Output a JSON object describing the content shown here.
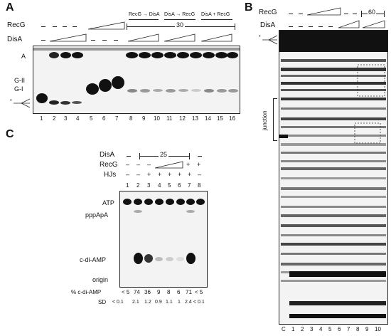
{
  "panelA": {
    "label": "A",
    "recg_label": "RecG",
    "disa_label": "DisA",
    "order_labels": [
      "RecG → DisA",
      "DisA → RecG",
      "DisA + RecG"
    ],
    "conc": "30",
    "band_labels": {
      "a": "A",
      "g2": "G-II",
      "g1": "G-I"
    },
    "lanes": [
      "1",
      "2",
      "3",
      "4",
      "5",
      "6",
      "7",
      "8",
      "9",
      "10",
      "11",
      "12",
      "13",
      "14",
      "15",
      "16"
    ]
  },
  "panelB": {
    "label": "B",
    "recg_label": "RecG",
    "disa_label": "DisA",
    "conc": "60",
    "junction_label": "junction",
    "lanes": [
      "C",
      "1",
      "2",
      "3",
      "4",
      "5",
      "6",
      "7",
      "8",
      "9",
      "10"
    ]
  },
  "panelC": {
    "label": "C",
    "disa_label": "DisA",
    "recg_label": "RecG",
    "hjs_label": "HJs",
    "conc": "25",
    "lanes": [
      "1",
      "2",
      "3",
      "4",
      "5",
      "6",
      "7",
      "8"
    ],
    "hjs_signs": [
      "–",
      "–",
      "+",
      "+",
      "+",
      "+",
      "+",
      "–"
    ],
    "recg_signs": [
      "–",
      "–",
      "–",
      "",
      "",
      "",
      "+",
      "+"
    ],
    "row_labels": {
      "atp": "ATP",
      "pppapa": "pppApA",
      "cdiamp": "c-di-AMP",
      "origin": "origin"
    },
    "pct_label": "% c-di-AMP",
    "pct_values": [
      "< 5",
      "74",
      "36",
      "9",
      "8",
      "6",
      "71",
      "< 5"
    ],
    "sd_label": "SD",
    "sd_values": [
      "< 0.1",
      "2.1",
      "1.2",
      "0.9",
      "1.1",
      "1",
      "2.4",
      "< 0.1"
    ]
  }
}
